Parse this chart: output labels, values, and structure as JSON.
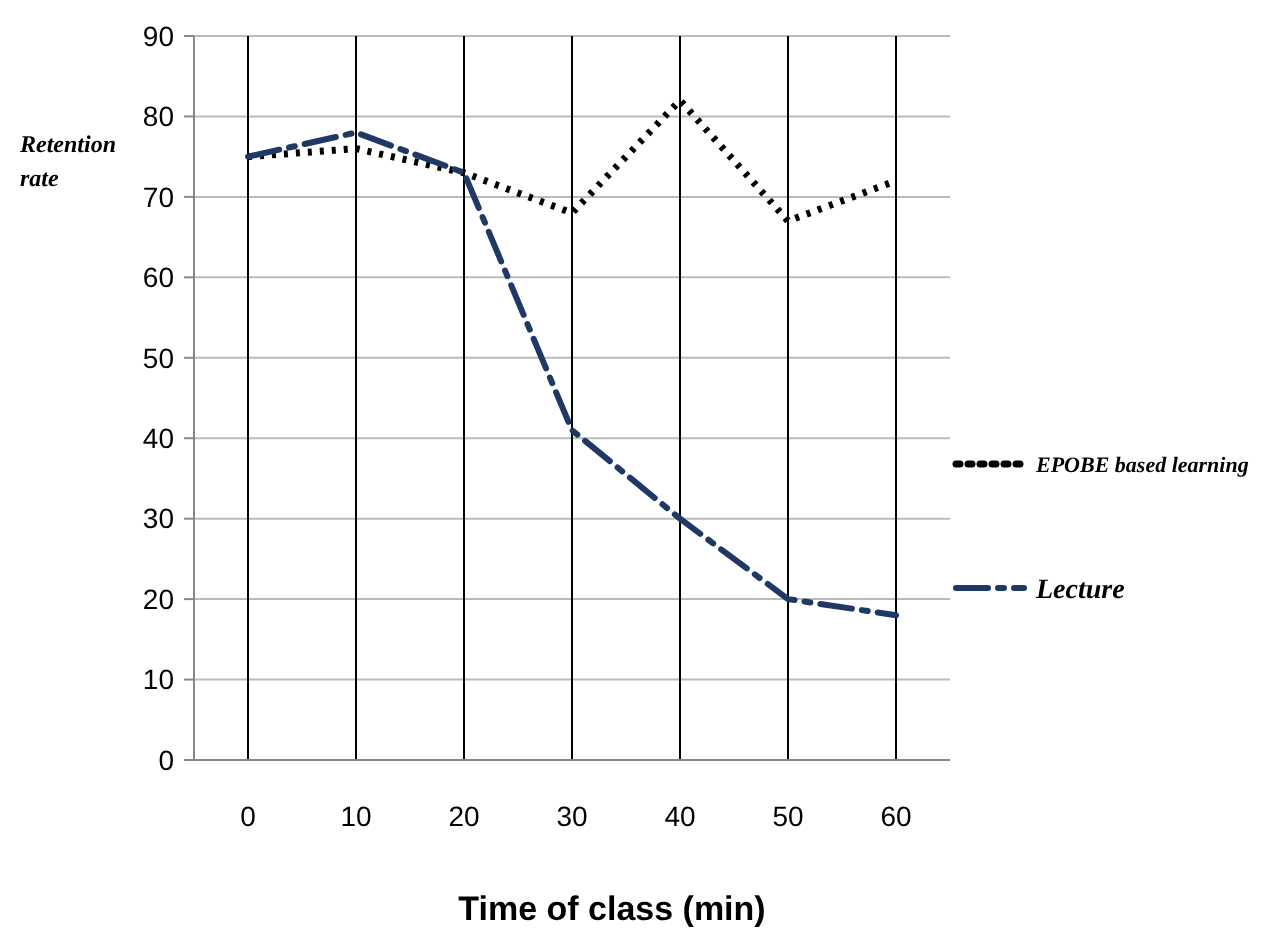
{
  "chart_data": {
    "type": "line",
    "xlabel": "Time of class (min)",
    "ylabel": "Retention rate",
    "categories": [
      "0",
      "10",
      "20",
      "30",
      "40",
      "50",
      "60"
    ],
    "series": [
      {
        "name": "EPOBE based learning",
        "color": "#000000",
        "line_style": "dotted",
        "values": [
          75,
          76,
          73,
          68,
          82,
          67,
          72
        ]
      },
      {
        "name": "Lecture",
        "color": "#1f3864",
        "line_style": "dashed",
        "values": [
          75,
          78,
          73,
          41,
          30,
          20,
          18
        ]
      }
    ],
    "ylim": [
      0,
      90
    ],
    "yticks": [
      0,
      10,
      20,
      30,
      40,
      50,
      60,
      70,
      80,
      90
    ],
    "grid": true,
    "legend": "right",
    "marker": "none"
  }
}
